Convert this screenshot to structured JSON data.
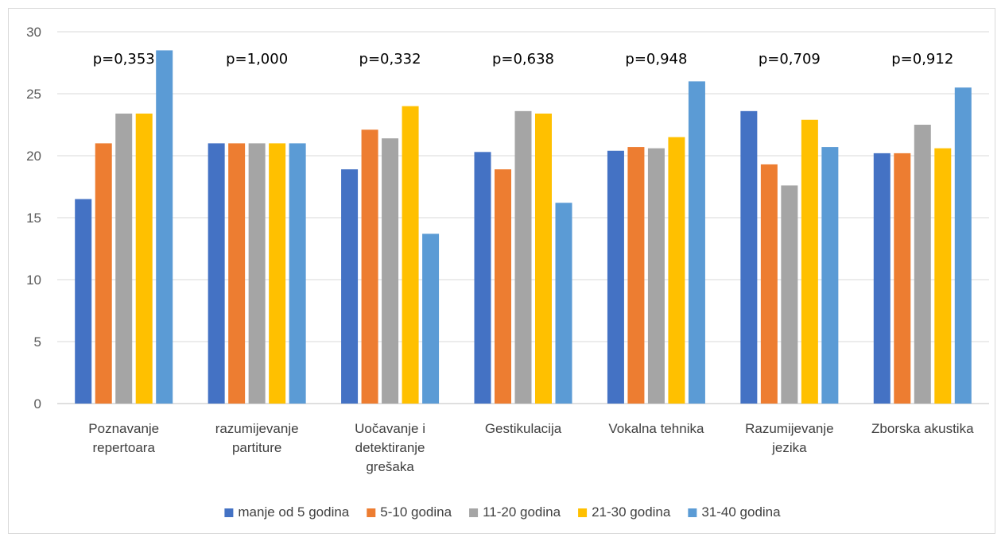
{
  "chart_data": {
    "type": "bar",
    "categories": [
      [
        "Poznavanje",
        "repertoara"
      ],
      [
        "razumijevanje",
        "partiture"
      ],
      [
        "Uočavanje i",
        "detektiranje",
        "grešaka"
      ],
      [
        "Gestikulacija"
      ],
      [
        "Vokalna tehnika"
      ],
      [
        "Razumijevanje",
        "jezika"
      ],
      [
        "Zborska akustika"
      ]
    ],
    "annotations": [
      "p=0,353",
      "p=1,000",
      "p=0,332",
      "p=0,638",
      "p=0,948",
      "p=0,709",
      "p=0,912"
    ],
    "series": [
      {
        "name": "manje od 5 godina",
        "color": "#4472C4",
        "values": [
          16.5,
          21.0,
          18.9,
          20.3,
          20.4,
          23.6,
          20.2
        ]
      },
      {
        "name": "5-10 godina",
        "color": "#ED7D31",
        "values": [
          21.0,
          21.0,
          22.1,
          18.9,
          20.7,
          19.3,
          20.2
        ]
      },
      {
        "name": "11-20 godina",
        "color": "#A5A5A5",
        "values": [
          23.4,
          21.0,
          21.4,
          23.6,
          20.6,
          17.6,
          22.5
        ]
      },
      {
        "name": "21-30 godina",
        "color": "#FFC000",
        "values": [
          23.4,
          21.0,
          24.0,
          23.4,
          21.5,
          22.9,
          20.6
        ]
      },
      {
        "name": "31-40 godina",
        "color": "#5B9BD5",
        "values": [
          28.5,
          21.0,
          13.7,
          16.2,
          26.0,
          20.7,
          25.5
        ]
      }
    ],
    "ylim": [
      0,
      30
    ],
    "yticks": [
      0,
      5,
      10,
      15,
      20,
      25,
      30
    ],
    "grid": true,
    "legend_position": "bottom"
  }
}
